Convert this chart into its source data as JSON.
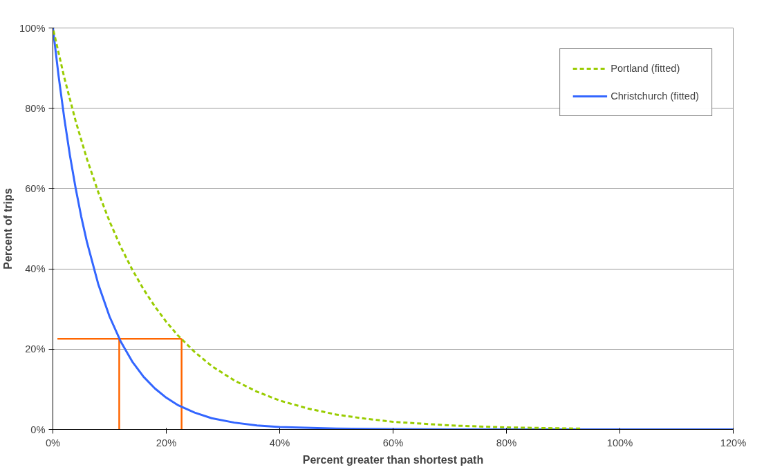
{
  "chart_data": {
    "type": "line",
    "xlabel": "Percent greater than shortest path",
    "ylabel": "Percent of trips",
    "xlim": [
      0,
      120
    ],
    "ylim": [
      0,
      100
    ],
    "xticks": [
      {
        "value": 0,
        "label": "0%"
      },
      {
        "value": 20,
        "label": "20%"
      },
      {
        "value": 40,
        "label": "40%"
      },
      {
        "value": 60,
        "label": "60%"
      },
      {
        "value": 80,
        "label": "80%"
      },
      {
        "value": 100,
        "label": "100%"
      },
      {
        "value": 120,
        "label": "120%"
      }
    ],
    "yticks": [
      {
        "value": 0,
        "label": "0%"
      },
      {
        "value": 20,
        "label": "20%"
      },
      {
        "value": 40,
        "label": "40%"
      },
      {
        "value": 60,
        "label": "60%"
      },
      {
        "value": 80,
        "label": "80%"
      },
      {
        "value": 100,
        "label": "100%"
      }
    ],
    "grid": "y",
    "legend": "top right",
    "marker": "none",
    "series": [
      {
        "name": "Portland (fitted)",
        "color": "#99cc00",
        "line_style": "dashed",
        "x": [
          0,
          2,
          4,
          6,
          8,
          10,
          12,
          14,
          16,
          18,
          20,
          22,
          25,
          28,
          32,
          36,
          40,
          45,
          50,
          55,
          60,
          70,
          80,
          93
        ],
        "values": [
          100,
          87.7,
          76.9,
          67.4,
          59.1,
          51.8,
          45.4,
          39.8,
          34.9,
          30.6,
          26.8,
          23.5,
          19.3,
          15.8,
          12.2,
          9.4,
          7.2,
          5.2,
          3.7,
          2.7,
          1.9,
          1.0,
          0.5,
          0.2
        ]
      },
      {
        "name": "Christchurch (fitted)",
        "color": "#3366ff",
        "line_style": "solid",
        "x": [
          0,
          1,
          2,
          3,
          4,
          5,
          6,
          8,
          10,
          12,
          14,
          16,
          18,
          20,
          22,
          25,
          28,
          32,
          36,
          40,
          50,
          60,
          70,
          80,
          90,
          100,
          110,
          120
        ],
        "values": [
          100,
          88.1,
          77.6,
          68.3,
          60.2,
          53.0,
          46.7,
          36.2,
          28.1,
          21.8,
          16.9,
          13.1,
          10.2,
          7.9,
          6.1,
          4.2,
          2.8,
          1.7,
          1.0,
          0.6,
          0.2,
          0.1,
          0,
          0,
          0,
          0,
          0,
          0
        ]
      },
      {
        "color": "#ff6600",
        "line_style": "solid",
        "x": [
          0.8,
          22.7
        ],
        "values": [
          22.6,
          22.6
        ]
      },
      {
        "color": "#ff6600",
        "line_style": "solid",
        "x": [
          11.7,
          11.7
        ],
        "values": [
          0,
          22.6
        ]
      },
      {
        "color": "#ff6600",
        "line_style": "solid",
        "x": [
          22.7,
          22.7
        ],
        "values": [
          0,
          22.6
        ]
      }
    ]
  }
}
